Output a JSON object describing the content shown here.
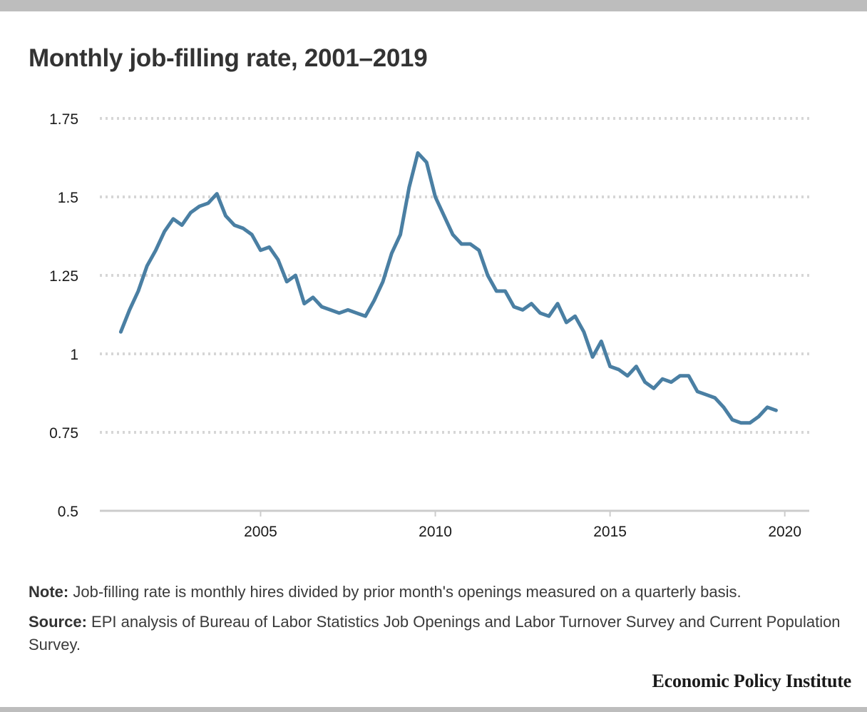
{
  "header": {
    "title": "Monthly job-filling rate, 2001–2019"
  },
  "footer": {
    "note_label": "Note:",
    "note_text": "Job-filling rate is monthly hires divided by prior month's openings measured on a quarterly basis.",
    "source_label": "Source:",
    "source_text": "EPI analysis of Bureau of Labor Statistics Job Openings and Labor Turnover Survey and Current Population Survey.",
    "brand": "Economic Policy Institute"
  },
  "colors": {
    "line": "#4a7fa3",
    "grid": "#d6d6d6",
    "axis": "#cccccc"
  },
  "chart_data": {
    "type": "line",
    "title": "Monthly job-filling rate, 2001–2019",
    "xlabel": "",
    "ylabel": "",
    "xlim": [
      2000.4,
      2020.7
    ],
    "ylim": [
      0.5,
      1.75
    ],
    "x_ticks": [
      2005,
      2010,
      2015,
      2020
    ],
    "y_ticks": [
      0.5,
      0.75,
      1,
      1.25,
      1.5,
      1.75
    ],
    "y_tick_labels": [
      "0.5",
      "0.75",
      "1",
      "1.25",
      "1.5",
      "1.75"
    ],
    "grid": true,
    "legend": "none",
    "series": [
      {
        "x": [
          2001.0,
          2001.25,
          2001.5,
          2001.75,
          2002.0,
          2002.25,
          2002.5,
          2002.75,
          2003.0,
          2003.25,
          2003.5,
          2003.75,
          2004.0,
          2004.25,
          2004.5,
          2004.75,
          2005.0,
          2005.25,
          2005.5,
          2005.75,
          2006.0,
          2006.25,
          2006.5,
          2006.75,
          2007.0,
          2007.25,
          2007.5,
          2007.75,
          2008.0,
          2008.25,
          2008.5,
          2008.75,
          2009.0,
          2009.25,
          2009.5,
          2009.75,
          2010.0,
          2010.25,
          2010.5,
          2010.75,
          2011.0,
          2011.25,
          2011.5,
          2011.75,
          2012.0,
          2012.25,
          2012.5,
          2012.75,
          2013.0,
          2013.25,
          2013.5,
          2013.75,
          2014.0,
          2014.25,
          2014.5,
          2014.75,
          2015.0,
          2015.25,
          2015.5,
          2015.75,
          2016.0,
          2016.25,
          2016.5,
          2016.75,
          2017.0,
          2017.25,
          2017.5,
          2017.75,
          2018.0,
          2018.25,
          2018.5,
          2018.75,
          2019.0,
          2019.25,
          2019.5,
          2019.75
        ],
        "values": [
          1.07,
          1.14,
          1.2,
          1.28,
          1.33,
          1.39,
          1.43,
          1.41,
          1.45,
          1.47,
          1.48,
          1.51,
          1.44,
          1.41,
          1.4,
          1.38,
          1.33,
          1.34,
          1.3,
          1.23,
          1.25,
          1.16,
          1.18,
          1.15,
          1.14,
          1.13,
          1.14,
          1.13,
          1.12,
          1.17,
          1.23,
          1.32,
          1.38,
          1.53,
          1.64,
          1.61,
          1.5,
          1.44,
          1.38,
          1.35,
          1.35,
          1.33,
          1.25,
          1.2,
          1.2,
          1.15,
          1.14,
          1.16,
          1.13,
          1.12,
          1.16,
          1.1,
          1.12,
          1.07,
          0.99,
          1.04,
          0.96,
          0.95,
          0.93,
          0.96,
          0.91,
          0.89,
          0.92,
          0.91,
          0.93,
          0.93,
          0.88,
          0.87,
          0.86,
          0.83,
          0.79,
          0.78,
          0.78,
          0.8,
          0.83,
          0.82
        ]
      }
    ]
  }
}
